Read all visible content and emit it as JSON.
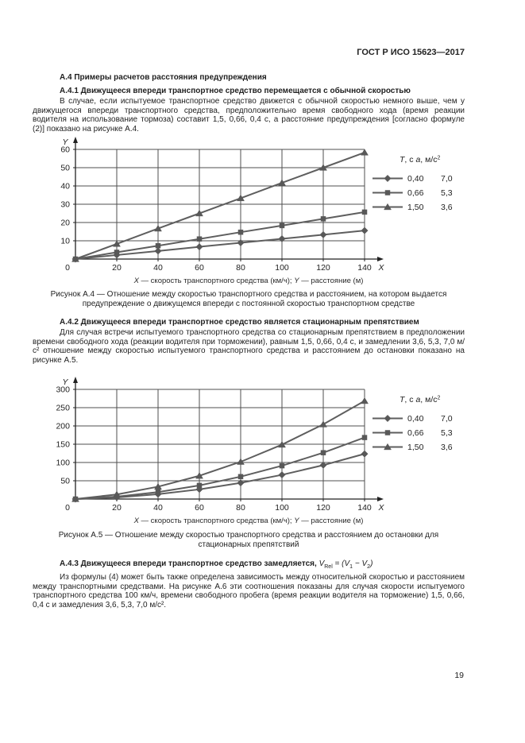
{
  "page": {
    "header": "ГОСТ Р ИСО 15623—2017",
    "page_number": "19"
  },
  "sections": {
    "a4_heading": "А.4 Примеры расчетов расстояния предупреждения",
    "a41_heading": "А.4.1 Движущееся впереди транспортное средство перемещается с обычной скоростью",
    "a41_body": "В случае, если испытуемое транспортное средство движется с обычной скоростью немного выше, чем у движущегося впереди транспортного средства, предположительно время свободного хода (время реакции водителя на использование тормоза) составит 1,5, 0,66, 0,4 с, а расстояние предупреждения [согласно формуле (2)] показано на рисунке А.4.",
    "fig_a4_caption": "Рисунок А.4 — Отношение между скоростью транспортного средства и расстоянием, на котором выдается предупреждение о движущемся впереди с постоянной скоростью транспортном средстве",
    "a42_heading": "А.4.2 Движущееся впереди транспортное средство является стационарным препятствием",
    "a42_body": "Для случая встречи испытуемого транспортного средства со стационарным препятствием в предположении времени свободного хода (реакции водителя при торможении), равным 1,5, 0,66, 0,4 с, и замедлении 3,6, 5,3, 7,0 м/с² отношение между скоростью испытуемого транспортного средства и расстоянием до остановки показано на рисунке А.5.",
    "fig_a5_caption": "Рисунок А.5 — Отношение между скоростью транспортного средства и расстоянием до остановки для стационарных препятствий",
    "a43_heading_bold": "А.4.3 Движущееся впереди транспортное средство замедляется, ",
    "a43_formula": {
      "v": "V",
      "sub_rel": "Rel",
      "middle": " = (",
      "v1": "V",
      "sub1": "1",
      "minus": " − ",
      "v2": "V",
      "sub2": "2",
      "end": ")"
    },
    "a43_body": "Из формулы (4) может быть также определена зависимость между относительной скоростью и расстоянием между транспортными средствами. На рисунке А.6 эти соотношения показаны для случая скорости испытуемого транспортного средства 100 км/ч, времени свободного пробега (время реакции водителя на торможение) 1,5, 0,66, 0,4 с и замедления 3,6, 5,3, 7,0 м/с²."
  },
  "axis_note": {
    "x_var": "X",
    "x_text": " — скорость транспортного средства (км/ч); ",
    "y_var": "Y",
    "y_text": " — расстояние (м)"
  },
  "chart_data": [
    {
      "type": "line",
      "figure": "А.4",
      "title": "Отношение между скоростью транспортного средства и расстоянием, на котором выдается предупреждение о движущемся впереди с постоянной скоростью транспортном средстве",
      "xlabel": "X — скорость транспортного средства (км/ч)",
      "ylabel": "Y — расстояние (м)",
      "x": [
        0,
        20,
        40,
        60,
        80,
        100,
        120,
        140
      ],
      "xlim": [
        0,
        140
      ],
      "ylim": [
        0,
        60
      ],
      "xtick_step": 20,
      "ytick_step": 10,
      "grid": true,
      "legend_position": "right",
      "legend_header": {
        "t": "T",
        "t_unit": ", с  ",
        "a": "a",
        "a_unit": ", м/с",
        "a_sup": "2"
      },
      "series": [
        {
          "t": "0,40",
          "a": "7,0",
          "marker": "diamond",
          "values": [
            0,
            2.2,
            4.4,
            6.7,
            8.9,
            11.1,
            13.3,
            15.6
          ]
        },
        {
          "t": "0,66",
          "a": "5,3",
          "marker": "square",
          "values": [
            0,
            3.7,
            7.3,
            11.0,
            14.7,
            18.3,
            22.0,
            25.7
          ]
        },
        {
          "t": "1,50",
          "a": "3,6",
          "marker": "triangle",
          "values": [
            0,
            8.3,
            16.7,
            25.0,
            33.3,
            41.7,
            50.0,
            58.3
          ]
        }
      ]
    },
    {
      "type": "line",
      "figure": "А.5",
      "title": "Отношение между скоростью транспортного средства и расстоянием до остановки для стационарных препятствий",
      "xlabel": "X — скорость транспортного средства (км/ч)",
      "ylabel": "Y — расстояние (м)",
      "x": [
        0,
        20,
        40,
        60,
        80,
        100,
        120,
        140
      ],
      "xlim": [
        0,
        140
      ],
      "ylim": [
        0,
        300
      ],
      "xtick_step": 20,
      "ytick_step": 50,
      "grid": true,
      "legend_position": "right",
      "legend_header": {
        "t": "T",
        "t_unit": ", с  ",
        "a": "a",
        "a_unit": ", м/с",
        "a_sup": "2"
      },
      "series": [
        {
          "t": "0,40",
          "a": "7,0",
          "marker": "diamond",
          "values": [
            0,
            4.4,
            13.3,
            26.5,
            44.2,
            66.2,
            92.7,
            123.6
          ]
        },
        {
          "t": "0,66",
          "a": "5,3",
          "marker": "square",
          "values": [
            0,
            6.6,
            19.0,
            37.2,
            61.3,
            91.1,
            126.8,
            168.3
          ]
        },
        {
          "t": "1,50",
          "a": "3,6",
          "marker": "triangle",
          "values": [
            0,
            12.6,
            33.8,
            63.6,
            101.9,
            148.8,
            204.3,
            268.4
          ]
        }
      ]
    }
  ],
  "colors": {
    "line": "#5e5e5e",
    "marker": "#585858",
    "grid": "#4f4f4f",
    "axis": "#222222",
    "text": "#222222"
  }
}
